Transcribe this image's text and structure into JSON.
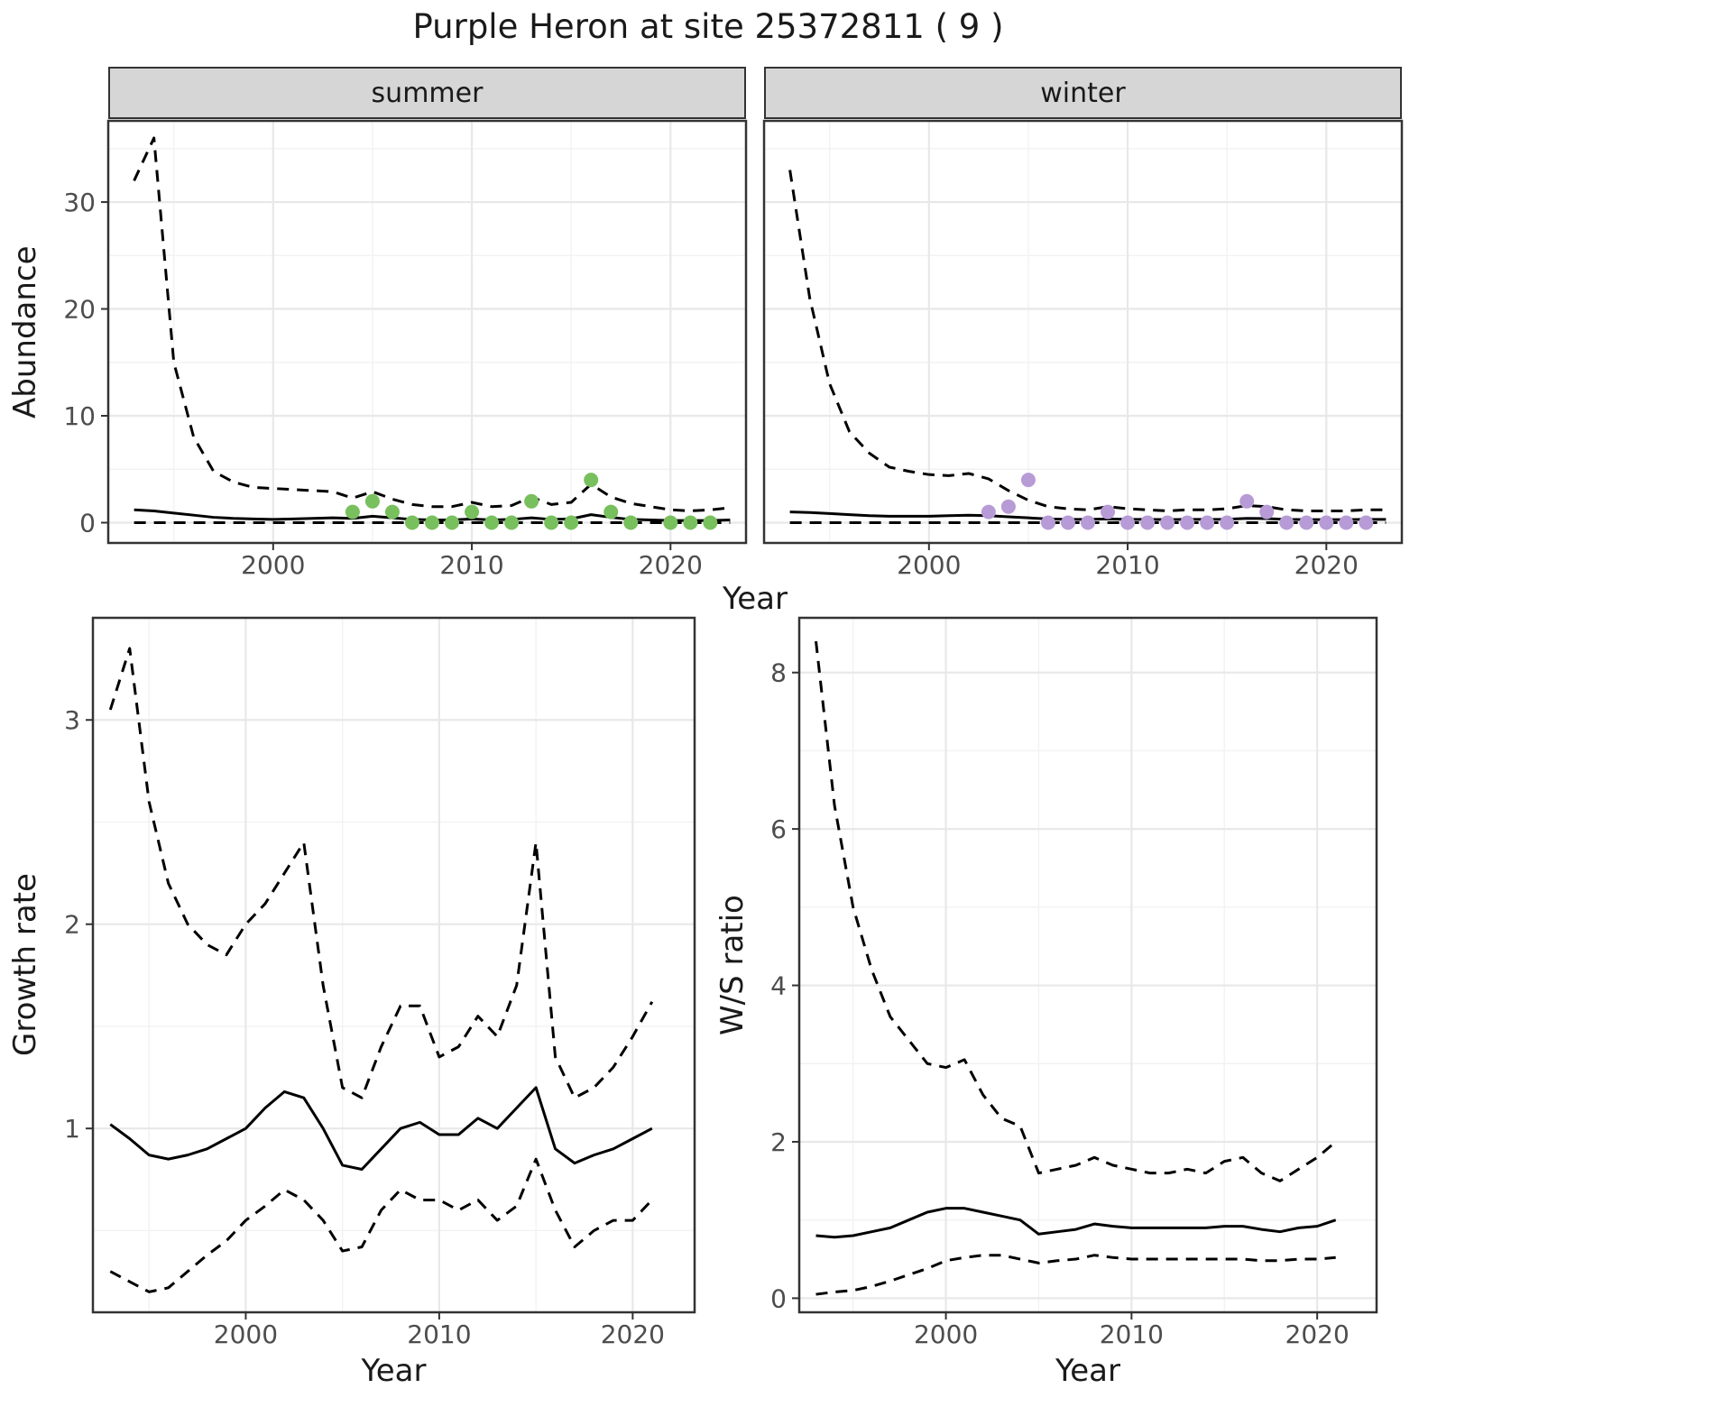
{
  "title": "Purple Heron at site 25372811 ( 9 )",
  "facets": [
    {
      "label": "summer"
    },
    {
      "label": "winter"
    }
  ],
  "axes": {
    "x_label": "Year",
    "abundance_label": "Abundance",
    "growth_label": "Growth rate",
    "ws_label": "W/S ratio"
  },
  "colors": {
    "summer_points": "#78BF5D",
    "winter_points": "#B79BD6",
    "line": "#000000",
    "grid_major": "#E8E8E8",
    "grid_minor": "#F2F2F2",
    "strip_bg": "#D6D6D6",
    "panel_border": "#333333",
    "tick_label": "#4D4D4D"
  },
  "chart_data": [
    {
      "id": "summer-abundance",
      "type": "line",
      "facet": "summer",
      "xlabel": "Year",
      "ylabel": "Abundance",
      "xlim": [
        1991.7,
        2023.8
      ],
      "ylim": [
        -1.9,
        37.6
      ],
      "x_ticks": [
        2000,
        2010,
        2020
      ],
      "x_minor": [
        1995,
        2005,
        2015
      ],
      "y_ticks": [
        0,
        10,
        20,
        30
      ],
      "y_minor": [
        5,
        15,
        25,
        35
      ],
      "x": [
        1993,
        1994,
        1995,
        1996,
        1997,
        1998,
        1999,
        2000,
        2001,
        2002,
        2003,
        2004,
        2005,
        2006,
        2007,
        2008,
        2009,
        2010,
        2011,
        2012,
        2013,
        2014,
        2015,
        2016,
        2017,
        2018,
        2019,
        2020,
        2021,
        2022,
        2023
      ],
      "series": [
        {
          "name": "upper-ci",
          "style": "dashed",
          "values": [
            32,
            36,
            15,
            8,
            4.8,
            3.8,
            3.3,
            3.2,
            3.1,
            3.0,
            2.9,
            2.3,
            2.9,
            2.2,
            1.7,
            1.5,
            1.5,
            1.9,
            1.5,
            1.6,
            2.4,
            1.7,
            1.9,
            3.6,
            2.4,
            1.8,
            1.5,
            1.2,
            1.1,
            1.2,
            1.4
          ]
        },
        {
          "name": "mean",
          "style": "solid",
          "values": [
            1.2,
            1.1,
            0.9,
            0.7,
            0.5,
            0.4,
            0.35,
            0.3,
            0.35,
            0.4,
            0.45,
            0.4,
            0.6,
            0.45,
            0.3,
            0.25,
            0.25,
            0.35,
            0.25,
            0.3,
            0.45,
            0.3,
            0.35,
            0.75,
            0.5,
            0.3,
            0.25,
            0.2,
            0.2,
            0.2,
            0.25
          ]
        },
        {
          "name": "lower-ci",
          "style": "dashed",
          "values": [
            0,
            0,
            0,
            0,
            0,
            0,
            0,
            0,
            0,
            0,
            0,
            0,
            0,
            0,
            0,
            0,
            0,
            0,
            0,
            0,
            0,
            0,
            0,
            0,
            0,
            0,
            0,
            0,
            0,
            0,
            0
          ]
        }
      ],
      "points": {
        "name": "observed-counts-summer",
        "color_key": "summer_points",
        "x": [
          2004,
          2005,
          2006,
          2007,
          2008,
          2009,
          2010,
          2011,
          2012,
          2013,
          2014,
          2015,
          2016,
          2017,
          2018,
          2020,
          2021,
          2022
        ],
        "y": [
          1,
          2,
          1,
          0,
          0,
          0,
          1,
          0,
          0,
          2,
          0,
          0,
          4,
          1,
          0,
          0,
          0,
          0
        ]
      }
    },
    {
      "id": "winter-abundance",
      "type": "line",
      "facet": "winter",
      "xlabel": "Year",
      "ylabel": "Abundance",
      "xlim": [
        1991.7,
        2023.8
      ],
      "ylim": [
        -1.9,
        37.6
      ],
      "x_ticks": [
        2000,
        2010,
        2020
      ],
      "x_minor": [
        1995,
        2005,
        2015
      ],
      "y_ticks": [
        0,
        10,
        20,
        30
      ],
      "y_minor": [
        5,
        15,
        25,
        35
      ],
      "x": [
        1993,
        1994,
        1995,
        1996,
        1997,
        1998,
        1999,
        2000,
        2001,
        2002,
        2003,
        2004,
        2005,
        2006,
        2007,
        2008,
        2009,
        2010,
        2011,
        2012,
        2013,
        2014,
        2015,
        2016,
        2017,
        2018,
        2019,
        2020,
        2021,
        2022,
        2023
      ],
      "series": [
        {
          "name": "upper-ci",
          "style": "dashed",
          "values": [
            33,
            21,
            13,
            8.5,
            6.5,
            5.2,
            4.8,
            4.5,
            4.4,
            4.6,
            4.1,
            3.0,
            2.1,
            1.5,
            1.3,
            1.2,
            1.5,
            1.3,
            1.2,
            1.1,
            1.2,
            1.2,
            1.3,
            1.6,
            1.5,
            1.2,
            1.1,
            1.1,
            1.1,
            1.2,
            1.2
          ]
        },
        {
          "name": "mean",
          "style": "solid",
          "values": [
            1.0,
            0.95,
            0.85,
            0.75,
            0.65,
            0.6,
            0.6,
            0.6,
            0.65,
            0.7,
            0.65,
            0.55,
            0.45,
            0.35,
            0.3,
            0.3,
            0.35,
            0.3,
            0.3,
            0.28,
            0.3,
            0.3,
            0.32,
            0.4,
            0.38,
            0.3,
            0.28,
            0.28,
            0.28,
            0.3,
            0.3
          ]
        },
        {
          "name": "lower-ci",
          "style": "dashed",
          "values": [
            0,
            0,
            0,
            0,
            0,
            0,
            0,
            0,
            0,
            0,
            0,
            0,
            0,
            0,
            0,
            0,
            0,
            0,
            0,
            0,
            0,
            0,
            0,
            0,
            0,
            0,
            0,
            0,
            0,
            0,
            0
          ]
        }
      ],
      "points": {
        "name": "observed-counts-winter",
        "color_key": "winter_points",
        "x": [
          2003,
          2004,
          2005,
          2006,
          2007,
          2008,
          2009,
          2010,
          2011,
          2012,
          2013,
          2014,
          2015,
          2016,
          2017,
          2018,
          2019,
          2020,
          2021,
          2022
        ],
        "y": [
          1,
          1.5,
          4,
          0,
          0,
          0,
          1,
          0,
          0,
          0,
          0,
          0,
          0,
          2,
          1,
          0,
          0,
          0,
          0,
          0
        ]
      }
    },
    {
      "id": "growth-rate",
      "type": "line",
      "xlabel": "Year",
      "ylabel": "Growth rate",
      "xlim": [
        1992.1,
        2023.2
      ],
      "ylim": [
        0.1,
        3.5
      ],
      "x_ticks": [
        2000,
        2010,
        2020
      ],
      "x_minor": [
        1995,
        2005,
        2015
      ],
      "y_ticks": [
        1,
        2,
        3
      ],
      "y_minor": [
        0.5,
        1.5,
        2.5
      ],
      "x": [
        1993,
        1994,
        1995,
        1996,
        1997,
        1998,
        1999,
        2000,
        2001,
        2002,
        2003,
        2004,
        2005,
        2006,
        2007,
        2008,
        2009,
        2010,
        2011,
        2012,
        2013,
        2014,
        2015,
        2016,
        2017,
        2018,
        2019,
        2020,
        2021
      ],
      "series": [
        {
          "name": "upper-ci",
          "style": "dashed",
          "values": [
            3.05,
            3.35,
            2.6,
            2.2,
            2.0,
            1.9,
            1.85,
            2.0,
            2.1,
            2.25,
            2.4,
            1.7,
            1.2,
            1.15,
            1.4,
            1.6,
            1.6,
            1.35,
            1.4,
            1.55,
            1.45,
            1.7,
            2.4,
            1.35,
            1.15,
            1.2,
            1.3,
            1.45,
            1.62
          ]
        },
        {
          "name": "mean",
          "style": "solid",
          "values": [
            1.02,
            0.95,
            0.87,
            0.85,
            0.87,
            0.9,
            0.95,
            1.0,
            1.1,
            1.18,
            1.15,
            1.0,
            0.82,
            0.8,
            0.9,
            1.0,
            1.03,
            0.97,
            0.97,
            1.05,
            1.0,
            1.1,
            1.2,
            0.9,
            0.83,
            0.87,
            0.9,
            0.95,
            1.0
          ]
        },
        {
          "name": "lower-ci",
          "style": "dashed",
          "values": [
            0.3,
            0.25,
            0.2,
            0.22,
            0.3,
            0.38,
            0.45,
            0.55,
            0.62,
            0.7,
            0.65,
            0.55,
            0.4,
            0.42,
            0.6,
            0.7,
            0.65,
            0.65,
            0.6,
            0.65,
            0.55,
            0.62,
            0.85,
            0.6,
            0.42,
            0.5,
            0.55,
            0.55,
            0.65
          ]
        }
      ]
    },
    {
      "id": "ws-ratio",
      "type": "line",
      "xlabel": "Year",
      "ylabel": "W/S ratio",
      "xlim": [
        1992.1,
        2023.2
      ],
      "ylim": [
        -0.18,
        8.7
      ],
      "x_ticks": [
        2000,
        2010,
        2020
      ],
      "x_minor": [
        1995,
        2005,
        2015
      ],
      "y_ticks": [
        0,
        2,
        4,
        6,
        8
      ],
      "y_minor": [
        1,
        3,
        5,
        7
      ],
      "x": [
        1993,
        1994,
        1995,
        1996,
        1997,
        1998,
        1999,
        2000,
        2001,
        2002,
        2003,
        2004,
        2005,
        2006,
        2007,
        2008,
        2009,
        2010,
        2011,
        2012,
        2013,
        2014,
        2015,
        2016,
        2017,
        2018,
        2019,
        2020,
        2021
      ],
      "series": [
        {
          "name": "upper-ci",
          "style": "dashed",
          "values": [
            8.4,
            6.3,
            5.0,
            4.2,
            3.6,
            3.3,
            3.0,
            2.95,
            3.05,
            2.6,
            2.3,
            2.2,
            1.6,
            1.65,
            1.7,
            1.8,
            1.7,
            1.65,
            1.6,
            1.6,
            1.65,
            1.6,
            1.75,
            1.8,
            1.6,
            1.5,
            1.65,
            1.8,
            2.0
          ]
        },
        {
          "name": "mean",
          "style": "solid",
          "values": [
            0.8,
            0.78,
            0.8,
            0.85,
            0.9,
            1.0,
            1.1,
            1.15,
            1.15,
            1.1,
            1.05,
            1.0,
            0.82,
            0.85,
            0.88,
            0.95,
            0.92,
            0.9,
            0.9,
            0.9,
            0.9,
            0.9,
            0.92,
            0.92,
            0.88,
            0.85,
            0.9,
            0.92,
            1.0
          ]
        },
        {
          "name": "lower-ci",
          "style": "dashed",
          "values": [
            0.05,
            0.08,
            0.1,
            0.15,
            0.22,
            0.3,
            0.38,
            0.48,
            0.52,
            0.55,
            0.55,
            0.5,
            0.45,
            0.48,
            0.5,
            0.55,
            0.52,
            0.5,
            0.5,
            0.5,
            0.5,
            0.5,
            0.5,
            0.5,
            0.48,
            0.48,
            0.5,
            0.5,
            0.52
          ]
        }
      ]
    }
  ]
}
